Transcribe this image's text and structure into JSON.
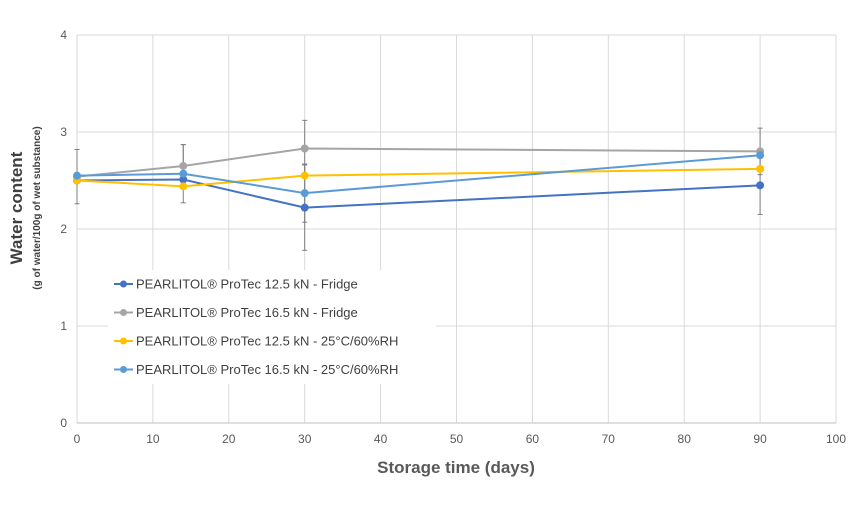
{
  "chart_data": {
    "type": "line",
    "title": "",
    "xlabel": "Storage time (days)",
    "ylabel": "Water content",
    "ylabel_sub": "(g of water/100g of wet substance)",
    "xlim": [
      0,
      100
    ],
    "ylim": [
      0,
      4
    ],
    "x_ticks": [
      "0",
      "10",
      "20",
      "30",
      "40",
      "50",
      "60",
      "70",
      "80",
      "90",
      "100"
    ],
    "y_ticks": [
      "0",
      "1",
      "2",
      "3",
      "4"
    ],
    "grid": "vertical and horizontal",
    "legend_position": "lower-left",
    "x": [
      0,
      14,
      30,
      90
    ],
    "series": [
      {
        "name": "PEARLITOL® ProTec 12.5 kN - Fridge",
        "color": "#4472c4",
        "values": [
          2.5,
          2.51,
          2.22,
          2.45
        ],
        "errors": [
          0.0,
          0.0,
          0.44,
          0.3
        ]
      },
      {
        "name": "PEARLITOL® ProTec 16.5 kN - Fridge",
        "color": "#a5a5a5",
        "values": [
          2.54,
          2.65,
          2.83,
          2.8
        ],
        "errors": [
          0.28,
          0.22,
          0.29,
          0.24
        ]
      },
      {
        "name": "PEARLITOL® ProTec 12.5 kN - 25°C/60%RH",
        "color": "#ffc000",
        "values": [
          2.5,
          2.44,
          2.55,
          2.62
        ],
        "errors": [
          0.0,
          0.0,
          0.0,
          0.0
        ]
      },
      {
        "name": "PEARLITOL® ProTec 16.5 kN - 25°C/60%RH",
        "color": "#5b9bd5",
        "values": [
          2.55,
          2.57,
          2.37,
          2.76
        ],
        "errors": [
          0.0,
          0.3,
          0.3,
          0.0
        ]
      }
    ]
  }
}
